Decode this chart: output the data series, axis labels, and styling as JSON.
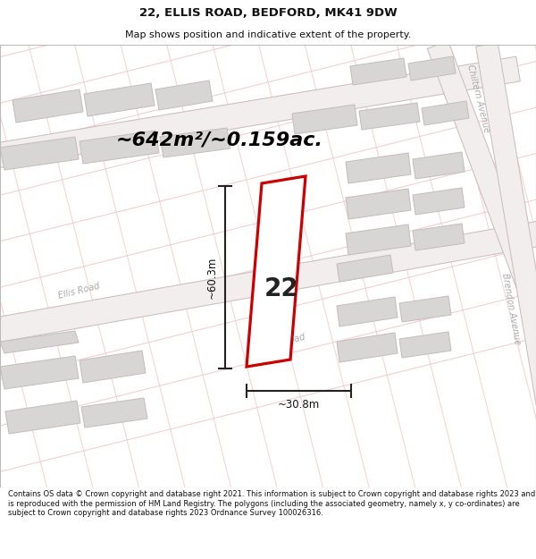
{
  "title_line1": "22, ELLIS ROAD, BEDFORD, MK41 9DW",
  "title_line2": "Map shows position and indicative extent of the property.",
  "area_text": "~642m²/~0.159ac.",
  "label_number": "22",
  "dim_height": "~60.3m",
  "dim_width": "~30.8m",
  "footer_text": "Contains OS data © Crown copyright and database right 2021. This information is subject to Crown copyright and database rights 2023 and is reproduced with the permission of HM Land Registry. The polygons (including the associated geometry, namely x, y co-ordinates) are subject to Crown copyright and database rights 2023 Ordnance Survey 100026316.",
  "bg_color": "white",
  "map_bg": "white",
  "road_outline_color": "#f0c8c8",
  "building_fill": "#d8d5d5",
  "building_edge": "#c8c0c0",
  "road_fill": "#f5efef",
  "road_edge": "#d0b0b0",
  "plot_stroke": "#cc0000",
  "plot_fill": "white",
  "title_color": "#111111",
  "street_name_color": "#aaaaaa",
  "dim_line_color": "#333333",
  "footer_color": "#111111"
}
